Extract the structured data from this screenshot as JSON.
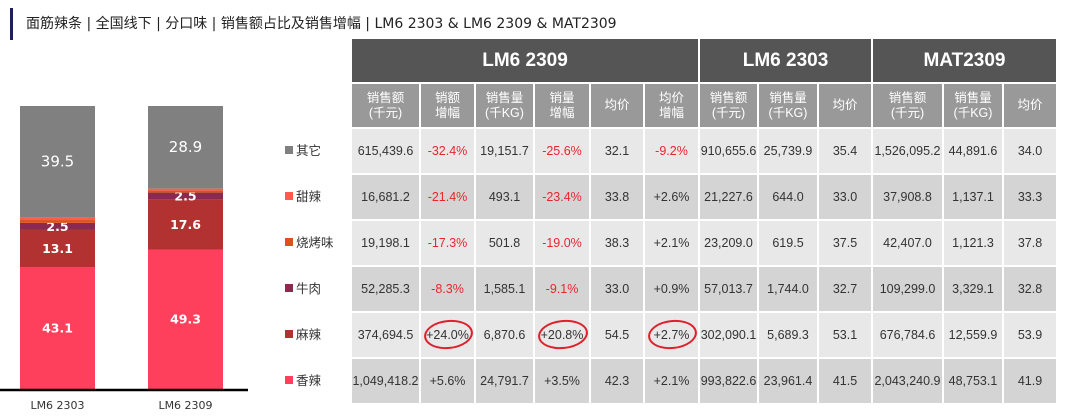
{
  "title": "面筋辣条 | 全国线下 | 分口味 | 销售额占比及销售增幅 | LM6 2303 & LM6 2309 & MAT2309",
  "chart_data": {
    "type": "bar",
    "stacked": true,
    "unit": "%",
    "categories": [
      "LM6 2303",
      "LM6 2309"
    ],
    "series": [
      {
        "name": "香辣",
        "color": "#ff405c",
        "values": [
          43.1,
          49.3
        ],
        "labels": [
          "43.1",
          "49.3"
        ]
      },
      {
        "name": "麻辣",
        "color": "#b23232",
        "values": [
          13.1,
          17.6
        ],
        "labels": [
          "13.1",
          "17.6"
        ]
      },
      {
        "name": "牛肉",
        "color": "#8b2a4e",
        "values": [
          2.5,
          2.5
        ],
        "labels": [
          "2.5",
          "2.5"
        ]
      },
      {
        "name": "烧烤味",
        "color": "#d9531e",
        "values": [
          1.0,
          0.8
        ],
        "labels": [
          "",
          ""
        ]
      },
      {
        "name": "甜辣",
        "color": "#ff5a4a",
        "values": [
          0.8,
          0.6
        ],
        "labels": [
          "",
          ""
        ]
      },
      {
        "name": "其它",
        "color": "#808080",
        "values": [
          39.5,
          28.9
        ],
        "labels": [
          "39.5",
          "28.9"
        ]
      }
    ],
    "legend": [
      "其它",
      "甜辣",
      "烧烤味",
      "牛肉",
      "麻辣",
      "香辣"
    ],
    "legend_position": "right"
  },
  "table": {
    "groups": [
      "LM6 2309",
      "LM6 2303",
      "MAT2309"
    ],
    "columns": [
      "销售额\n(千元)",
      "销额\n增幅",
      "销售量\n(千KG)",
      "销量\n增幅",
      "均价",
      "均价\n增幅",
      "销售额\n(千元)",
      "销售量\n(千KG)",
      "均价",
      "销售额\n(千元)",
      "销售量\n(千KG)",
      "均价"
    ],
    "rows": [
      [
        "615,439.6",
        "-32.4%",
        "19,151.7",
        "-25.6%",
        "32.1",
        "-9.2%",
        "910,655.6",
        "25,739.9",
        "35.4",
        "1,526,095.2",
        "44,891.6",
        "34.0"
      ],
      [
        "16,681.2",
        "-21.4%",
        "493.1",
        "-23.4%",
        "33.8",
        "+2.6%",
        "21,227.6",
        "644.0",
        "33.0",
        "37,908.8",
        "1,137.1",
        "33.3"
      ],
      [
        "19,198.1",
        "-17.3%",
        "501.8",
        "-19.0%",
        "38.3",
        "+2.1%",
        "23,209.0",
        "619.5",
        "37.5",
        "42,407.0",
        "1,121.3",
        "37.8"
      ],
      [
        "52,285.3",
        "-8.3%",
        "1,585.1",
        "-9.1%",
        "33.0",
        "+0.9%",
        "57,013.7",
        "1,744.0",
        "32.7",
        "109,299.0",
        "3,329.1",
        "32.8"
      ],
      [
        "374,694.5",
        "+24.0%",
        "6,870.6",
        "+20.8%",
        "54.5",
        "+2.7%",
        "302,090.1",
        "5,689.3",
        "53.1",
        "676,784.6",
        "12,559.9",
        "53.9"
      ],
      [
        "1,049,418.2",
        "+5.6%",
        "24,791.7",
        "+3.5%",
        "42.3",
        "+2.1%",
        "993,822.6",
        "23,961.4",
        "41.5",
        "2,043,240.9",
        "48,753.1",
        "41.9"
      ]
    ],
    "highlighted_row": 4
  }
}
